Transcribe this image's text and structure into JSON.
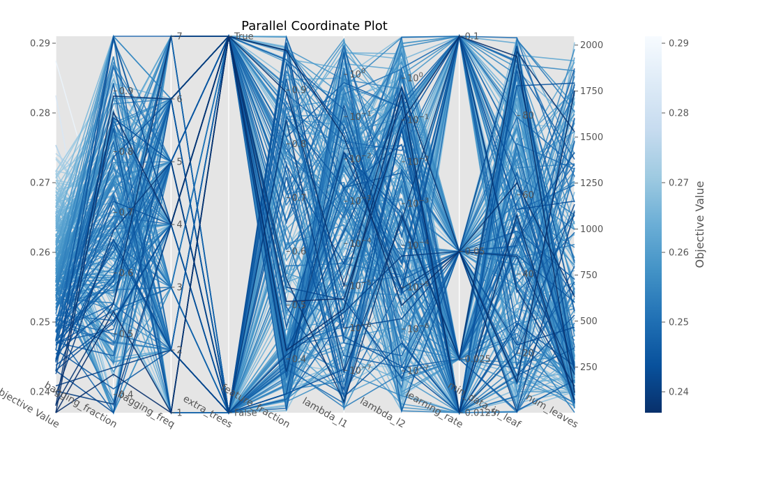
{
  "chart_data": {
    "type": "parallel_coordinates",
    "title": "Parallel Coordinate Plot",
    "n_trials_estimate": 250,
    "colormap": "Blues_r",
    "colorbar": {
      "label": "Objective Value",
      "range": [
        0.237,
        0.291
      ],
      "ticks": [
        "0.24",
        "0.25",
        "0.26",
        "0.27",
        "0.28",
        "0.29"
      ]
    },
    "axes": [
      {
        "name": "Objective Value",
        "scale": "linear",
        "range": [
          0.237,
          0.291
        ],
        "ticks": [
          "0.24",
          "0.25",
          "0.26",
          "0.27",
          "0.28",
          "0.29"
        ]
      },
      {
        "name": "bagging_fraction",
        "scale": "linear",
        "range": [
          0.37,
          0.99
        ],
        "ticks": [
          "0.4",
          "0.5",
          "0.6",
          "0.7",
          "0.8",
          "0.9"
        ]
      },
      {
        "name": "bagging_freq",
        "scale": "linear",
        "range": [
          1,
          7
        ],
        "ticks": [
          "1",
          "2",
          "3",
          "4",
          "5",
          "6",
          "7"
        ]
      },
      {
        "name": "extra_trees",
        "scale": "categorical",
        "categories": [
          "False",
          "True"
        ],
        "ticks": [
          "False",
          "True"
        ]
      },
      {
        "name": "feature_fraction",
        "scale": "linear",
        "range": [
          0.3,
          1.0
        ],
        "ticks": [
          "0.4",
          "0.5",
          "0.6",
          "0.7",
          "0.8",
          "0.9"
        ]
      },
      {
        "name": "lambda_l1",
        "scale": "log",
        "range": [
          -8,
          0.9
        ],
        "ticks": [
          "10^-7",
          "10^-6",
          "10^-5",
          "10^-4",
          "10^-3",
          "10^-2",
          "10^-1",
          "10^0"
        ]
      },
      {
        "name": "lambda_l2",
        "scale": "log",
        "range": [
          -8,
          1
        ],
        "ticks": [
          "10^-7",
          "10^-6",
          "10^-5",
          "10^-4",
          "10^-3",
          "10^-2",
          "10^-1",
          "10^0"
        ]
      },
      {
        "name": "learning_rate",
        "scale": "linear",
        "range": [
          0.0125,
          0.1
        ],
        "ticks": [
          "0.0125",
          "0.025",
          "0.05",
          "0.1"
        ]
      },
      {
        "name": "min_data_in_leaf",
        "scale": "linear",
        "range": [
          5,
          100
        ],
        "ticks": [
          "20",
          "40",
          "60",
          "80"
        ]
      },
      {
        "name": "num_leaves",
        "scale": "linear",
        "range": [
          2,
          2048
        ],
        "ticks": [
          "250",
          "500",
          "750",
          "1000",
          "1250",
          "1500",
          "1750",
          "2000"
        ]
      }
    ],
    "learning_rate_values": [
      0.0125,
      0.025,
      0.05,
      0.1
    ]
  }
}
